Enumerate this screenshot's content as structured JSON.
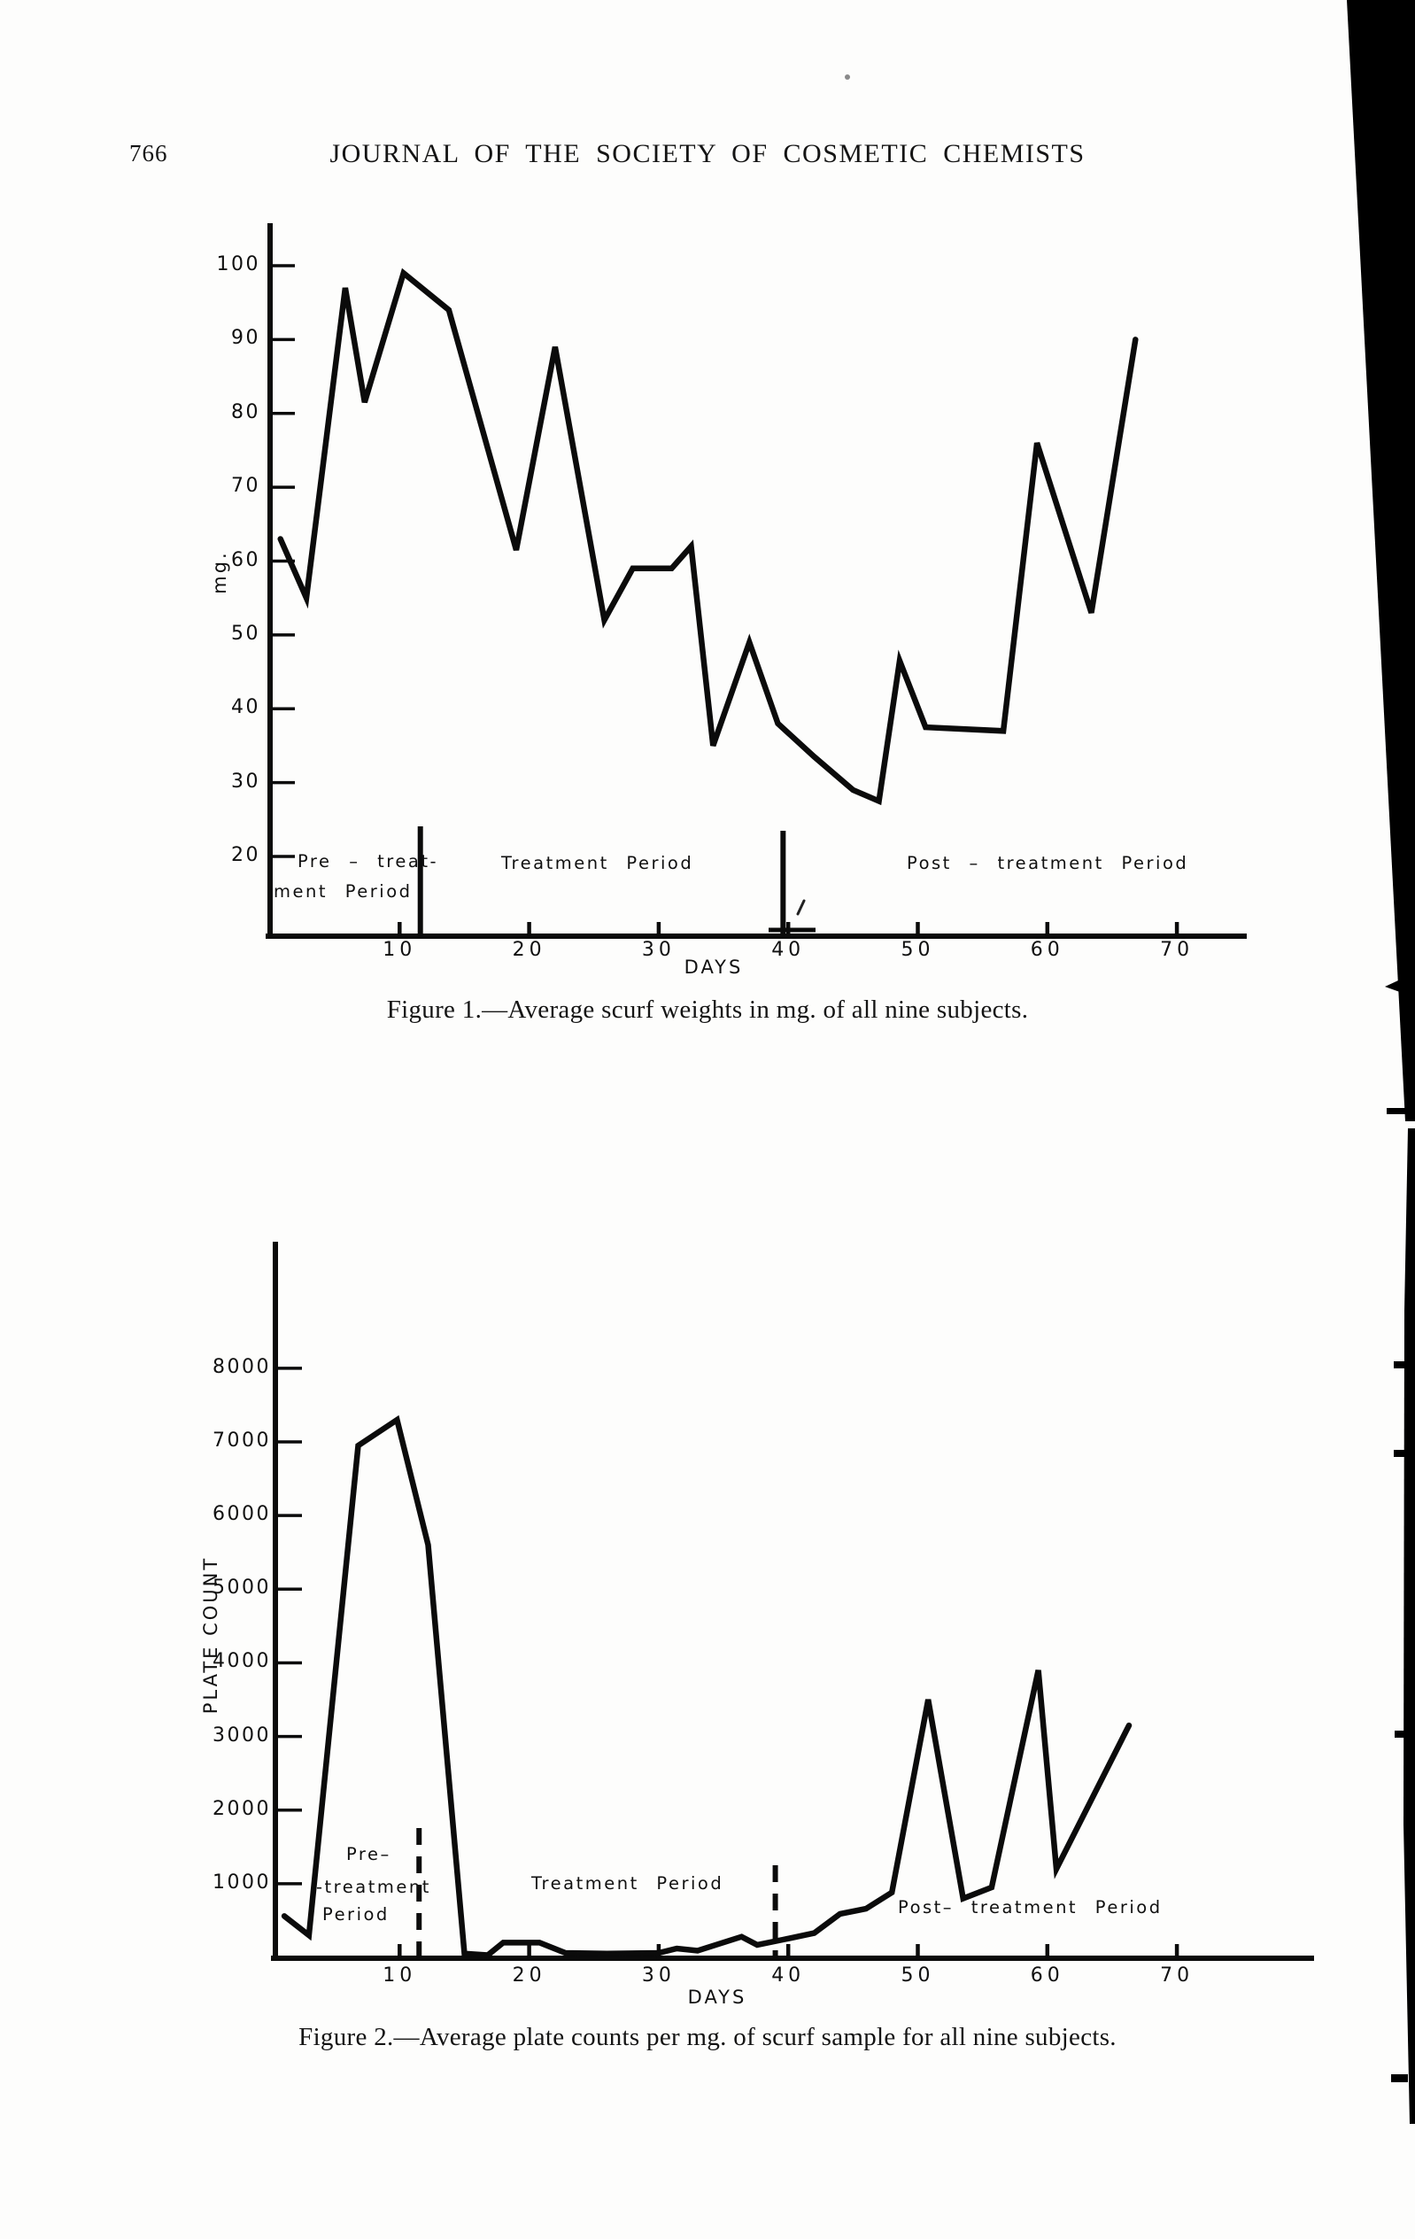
{
  "page": {
    "number": "766",
    "header": "JOURNAL OF THE SOCIETY OF COSMETIC CHEMISTS"
  },
  "figure1": {
    "ylabel": "mg.",
    "xlabel": "DAYS",
    "labels": {
      "pre_line1": "Pre – treat-",
      "pre_line2": "ment Period",
      "treatment": "Treatment Period",
      "post": "Post – treatment Period"
    },
    "caption": "Figure 1.—Average scurf weights in mg. of all nine subjects."
  },
  "figure2": {
    "ylabel": "PLATE COUNT",
    "xlabel": "DAYS",
    "labels": {
      "pre_line1": "Pre–",
      "pre_line2": "-treatment",
      "pre_line3": "Period",
      "treatment": "Treatment Period",
      "post": "Post– treatment Period"
    },
    "caption": "Figure 2.—Average plate counts per mg. of scurf sample for all nine subjects."
  },
  "chart_data": [
    {
      "type": "line",
      "title": "Average scurf weights in mg. of all nine subjects",
      "xlabel": "DAYS",
      "ylabel": "mg.",
      "x_ticks": [
        10,
        20,
        30,
        40,
        50,
        60,
        70
      ],
      "y_ticks": [
        100,
        90,
        80,
        70,
        60,
        50,
        40,
        30,
        20
      ],
      "xlim": [
        0,
        75
      ],
      "ylim": [
        9,
        106
      ],
      "grid": false,
      "legend": "none",
      "period_divider_days": [
        11.6,
        39.6
      ],
      "annotations": [
        "Pre-treatment Period",
        "Treatment Period",
        "Post-treatment Period"
      ],
      "series": [
        {
          "name": "Average scurf weight (mg)",
          "x": [
            0.8,
            2.8,
            5.8,
            7.3,
            10.3,
            13.8,
            19,
            22,
            25.8,
            28,
            31,
            32.5,
            34.2,
            37,
            39.2,
            42,
            45,
            47,
            48.6,
            50.6,
            56.6,
            59.2,
            63.4,
            66.8
          ],
          "y": [
            63,
            55,
            97,
            81.5,
            99,
            94,
            61.5,
            89,
            52,
            59,
            59,
            62,
            35,
            49,
            38,
            33.5,
            29,
            27.5,
            46.5,
            37.5,
            37,
            76,
            53,
            90
          ]
        }
      ]
    },
    {
      "type": "line",
      "title": "Average plate counts per mg. of scurf sample for all nine subjects",
      "xlabel": "DAYS",
      "ylabel": "PLATE COUNT",
      "x_ticks": [
        10,
        20,
        30,
        40,
        50,
        60,
        70
      ],
      "y_ticks": [
        8000,
        7000,
        6000,
        5000,
        4000,
        3000,
        2000,
        1000
      ],
      "xlim": [
        0,
        75
      ],
      "ylim": [
        0,
        9700
      ],
      "grid": false,
      "legend": "none",
      "period_divider_days": [
        11.5,
        39
      ],
      "annotations": [
        "Pre-treatment Period",
        "Treatment Period",
        "Post-treatment Period"
      ],
      "series": [
        {
          "name": "Average plate count per mg.",
          "x": [
            1.1,
            3,
            6.8,
            9.8,
            12.2,
            15,
            16.8,
            18,
            20.8,
            22.8,
            26,
            30,
            31.4,
            33,
            36.4,
            37.6,
            39.6,
            42,
            44,
            46,
            48,
            50.8,
            53.5,
            55.7,
            59.3,
            60.7,
            66.3
          ],
          "y": [
            560,
            300,
            6950,
            7300,
            5600,
            50,
            30,
            200,
            200,
            60,
            50,
            60,
            120,
            90,
            280,
            170,
            240,
            330,
            590,
            660,
            880,
            3500,
            800,
            950,
            3900,
            1200,
            3150
          ]
        }
      ]
    }
  ]
}
